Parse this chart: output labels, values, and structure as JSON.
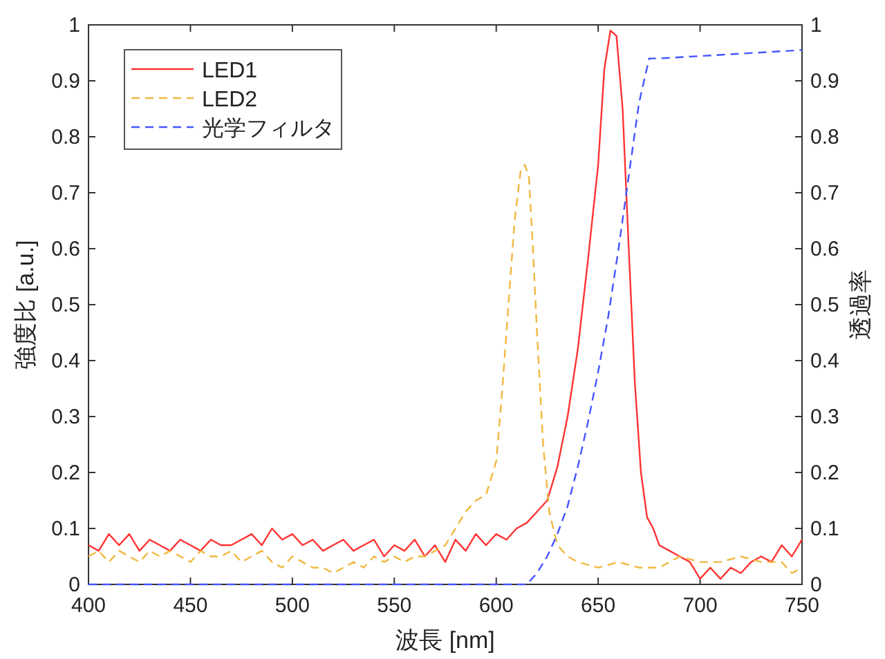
{
  "chart_data": {
    "type": "line",
    "xlabel": "波長 [nm]",
    "ylabel": "強度比 [a.u.]",
    "y2label": "透過率",
    "xlim": [
      400,
      750
    ],
    "xticks": [
      400,
      450,
      500,
      550,
      600,
      650,
      700,
      750
    ],
    "ylim": [
      0,
      1
    ],
    "yticks": [
      0,
      0.1,
      0.2,
      0.3,
      0.4,
      0.5,
      0.6,
      0.7,
      0.8,
      0.9,
      1
    ],
    "y2lim": [
      0,
      1
    ],
    "y2ticks": [
      0,
      0.1,
      0.2,
      0.3,
      0.4,
      0.5,
      0.6,
      0.7,
      0.8,
      0.9,
      1
    ],
    "legend": "top left",
    "grid": false,
    "series": [
      {
        "name": "LED1",
        "color": "#ff3333",
        "line_style": "solid",
        "x": [
          400,
          405,
          410,
          415,
          420,
          425,
          430,
          435,
          440,
          445,
          450,
          455,
          460,
          465,
          470,
          475,
          480,
          485,
          490,
          495,
          500,
          505,
          510,
          515,
          520,
          525,
          530,
          535,
          540,
          545,
          550,
          555,
          560,
          565,
          570,
          575,
          580,
          585,
          590,
          595,
          600,
          605,
          610,
          615,
          620,
          625,
          630,
          635,
          640,
          645,
          650,
          653,
          656,
          659,
          662,
          665,
          668,
          671,
          674,
          677,
          680,
          685,
          690,
          695,
          700,
          705,
          710,
          715,
          720,
          725,
          730,
          735,
          740,
          745,
          750
        ],
        "values": [
          0.07,
          0.06,
          0.09,
          0.07,
          0.09,
          0.06,
          0.08,
          0.07,
          0.06,
          0.08,
          0.07,
          0.06,
          0.08,
          0.07,
          0.07,
          0.08,
          0.09,
          0.07,
          0.1,
          0.08,
          0.09,
          0.07,
          0.08,
          0.06,
          0.07,
          0.08,
          0.06,
          0.07,
          0.08,
          0.05,
          0.07,
          0.06,
          0.08,
          0.05,
          0.07,
          0.04,
          0.08,
          0.06,
          0.09,
          0.07,
          0.09,
          0.08,
          0.1,
          0.11,
          0.13,
          0.15,
          0.21,
          0.3,
          0.42,
          0.58,
          0.75,
          0.92,
          0.99,
          0.98,
          0.85,
          0.6,
          0.36,
          0.2,
          0.12,
          0.1,
          0.07,
          0.06,
          0.05,
          0.04,
          0.01,
          0.03,
          0.01,
          0.03,
          0.02,
          0.04,
          0.05,
          0.04,
          0.07,
          0.05,
          0.08
        ]
      },
      {
        "name": "LED2",
        "color": "#f0b840",
        "line_style": "dashed",
        "x": [
          400,
          405,
          410,
          415,
          420,
          425,
          430,
          435,
          440,
          445,
          450,
          455,
          460,
          465,
          470,
          475,
          480,
          485,
          490,
          495,
          500,
          505,
          510,
          515,
          520,
          525,
          530,
          535,
          540,
          545,
          550,
          555,
          560,
          565,
          570,
          575,
          580,
          585,
          590,
          595,
          600,
          603,
          606,
          609,
          612,
          614,
          616,
          618,
          620,
          623,
          626,
          630,
          635,
          640,
          650,
          660,
          670,
          680,
          690,
          700,
          710,
          720,
          730,
          740,
          745,
          750
        ],
        "values": [
          0.05,
          0.06,
          0.04,
          0.06,
          0.05,
          0.04,
          0.06,
          0.05,
          0.06,
          0.05,
          0.04,
          0.06,
          0.05,
          0.05,
          0.06,
          0.04,
          0.05,
          0.06,
          0.04,
          0.03,
          0.05,
          0.04,
          0.03,
          0.03,
          0.02,
          0.03,
          0.04,
          0.03,
          0.05,
          0.04,
          0.05,
          0.04,
          0.05,
          0.05,
          0.06,
          0.07,
          0.1,
          0.13,
          0.15,
          0.16,
          0.22,
          0.35,
          0.5,
          0.65,
          0.74,
          0.75,
          0.73,
          0.6,
          0.45,
          0.25,
          0.13,
          0.07,
          0.05,
          0.04,
          0.03,
          0.04,
          0.03,
          0.03,
          0.05,
          0.04,
          0.04,
          0.05,
          0.04,
          0.04,
          0.02,
          0.03
        ]
      },
      {
        "name": "光学フィルタ",
        "color": "#4455ff",
        "line_style": "dashed",
        "axis": "y2",
        "x": [
          400,
          615,
          620,
          625,
          630,
          635,
          640,
          645,
          650,
          655,
          660,
          665,
          670,
          675,
          680,
          750
        ],
        "values": [
          0,
          0,
          0.02,
          0.05,
          0.09,
          0.14,
          0.21,
          0.29,
          0.38,
          0.48,
          0.6,
          0.73,
          0.86,
          0.94,
          0.94,
          0.955
        ]
      }
    ]
  }
}
